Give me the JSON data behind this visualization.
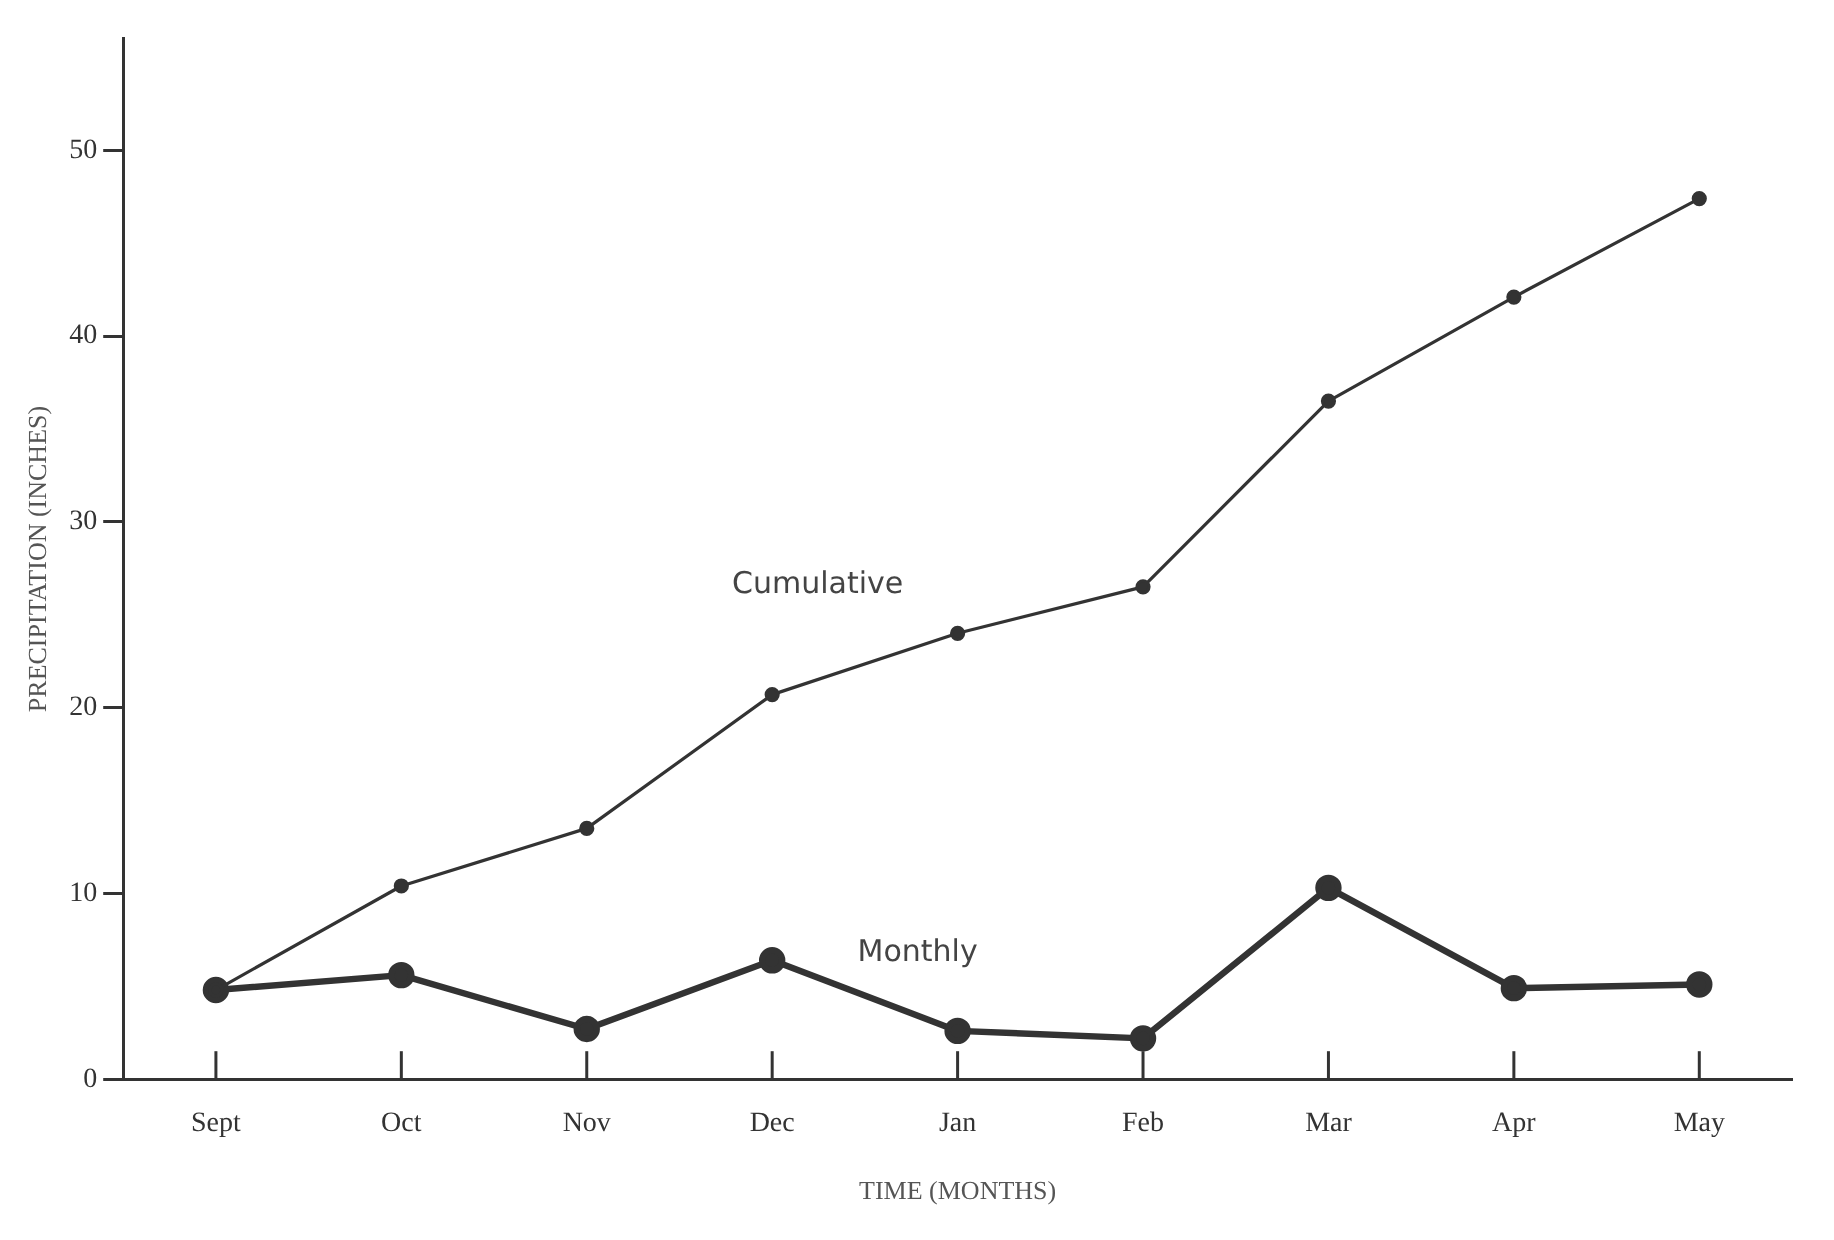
{
  "chart_data": {
    "type": "line",
    "xlabel": "TIME (MONTHS)",
    "ylabel": "PRECIPITATION (INCHES)",
    "categories": [
      "Sept",
      "Oct",
      "Nov",
      "Dec",
      "Jan",
      "Feb",
      "Mar",
      "Apr",
      "May"
    ],
    "series": [
      {
        "name": "Cumulative",
        "color": "#333333",
        "values": [
          4.8,
          10.4,
          13.5,
          20.7,
          24.0,
          26.5,
          36.5,
          42.1,
          47.4
        ]
      },
      {
        "name": "Monthly",
        "color": "#333333",
        "values": [
          4.8,
          5.6,
          2.7,
          6.4,
          2.6,
          2.2,
          10.3,
          4.9,
          5.1
        ]
      }
    ],
    "ylim": [
      0,
      56
    ],
    "yticks": [
      0,
      10,
      20,
      30,
      40,
      50
    ],
    "grid": false,
    "legend": false,
    "marker": "circle",
    "line_style": "solid"
  }
}
